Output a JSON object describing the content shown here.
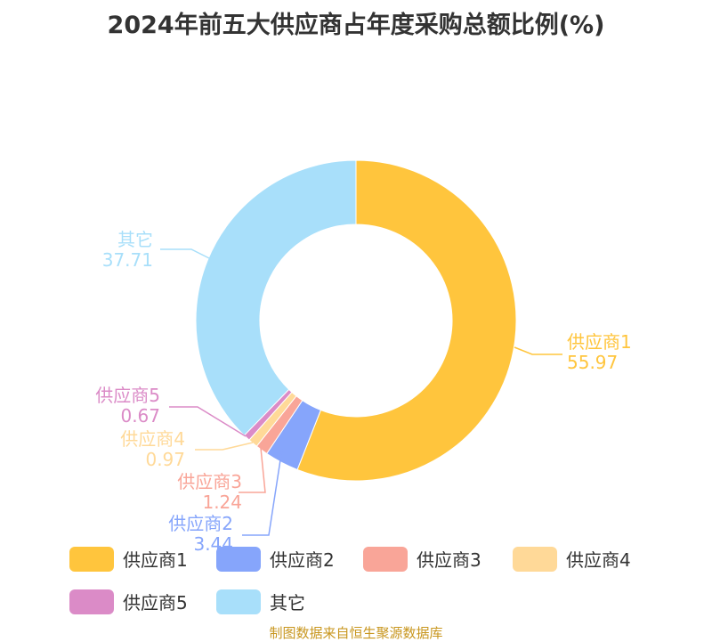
{
  "title": "2024年前五大供应商占年度采购总额比例(%)",
  "footer": "制图数据来自恒生聚源数据库",
  "chart_data": {
    "type": "pie",
    "donut": true,
    "title": "2024年前五大供应商占年度采购总额比例(%)",
    "legend_position": "bottom",
    "categories": [
      "供应商1",
      "供应商2",
      "供应商3",
      "供应商4",
      "供应商5",
      "其它"
    ],
    "values": [
      55.97,
      3.44,
      1.24,
      0.97,
      0.67,
      37.71
    ],
    "labels": [
      "55.97",
      "3.44",
      "1.24",
      "0.97",
      "0.67",
      "37.71"
    ],
    "colors": [
      "#FFC53D",
      "#86A5FB",
      "#F9A598",
      "#FFD998",
      "#DB8BC7",
      "#A8DFFA"
    ]
  }
}
